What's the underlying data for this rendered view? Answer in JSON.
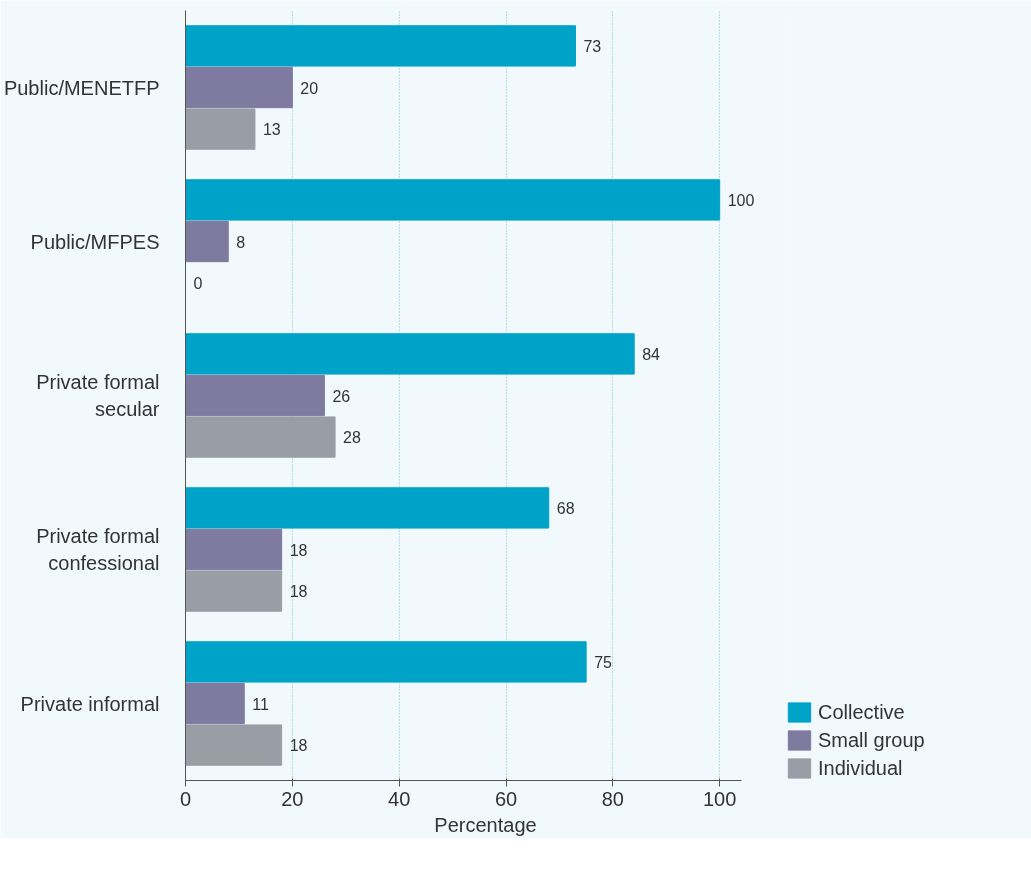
{
  "chart_data": {
    "type": "bar",
    "orientation": "horizontal",
    "xlabel": "Percentage",
    "categories": [
      "Public/MENETFP",
      "Public/MFPES",
      "Private formal secular",
      "Private formal confessional",
      "Private informal"
    ],
    "series": [
      {
        "name": "Collective",
        "color": "#00a3c8",
        "values": [
          73,
          100,
          84,
          68,
          75
        ]
      },
      {
        "name": "Small group",
        "color": "#7f7a9f",
        "values": [
          20,
          8,
          26,
          18,
          11
        ]
      },
      {
        "name": "Individual",
        "color": "#999ea6",
        "values": [
          13,
          0,
          28,
          18,
          18
        ]
      }
    ],
    "xlim": [
      0,
      104
    ],
    "xticks": [
      0,
      20,
      40,
      60,
      80,
      100
    ],
    "grid": "x",
    "legend": "bottom right",
    "data_labels": true
  }
}
